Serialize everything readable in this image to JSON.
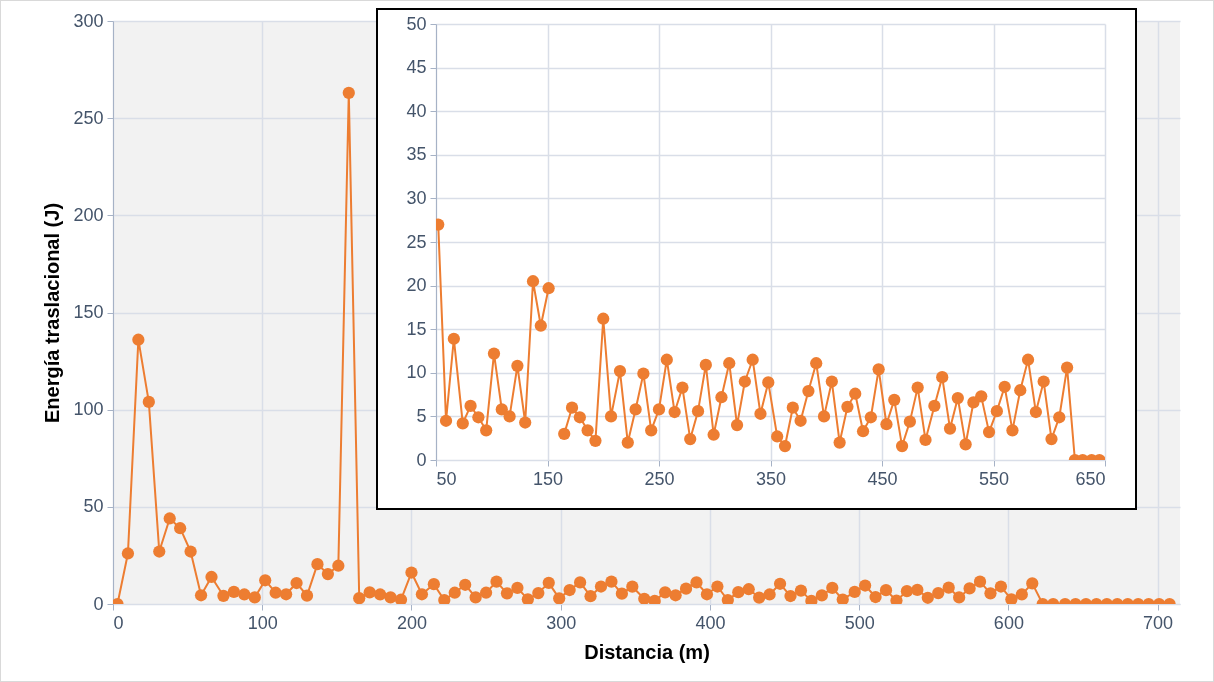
{
  "chart_data": [
    {
      "type": "line",
      "xlabel": "Distancia (m)",
      "ylabel": "Energía traslacional (J)",
      "marker": "circle",
      "grid": true,
      "xlim": [
        0,
        715
      ],
      "ylim": [
        0,
        300
      ],
      "xticks": [
        0,
        100,
        200,
        300,
        400,
        500,
        600,
        700
      ],
      "yticks": [
        0,
        50,
        100,
        150,
        200,
        250,
        300
      ],
      "x": [
        3,
        10,
        17,
        24,
        31,
        38,
        45,
        52,
        59,
        66,
        74,
        81,
        88,
        95,
        102,
        109,
        116,
        123,
        130,
        137,
        144,
        151,
        158,
        165,
        172,
        179,
        186,
        193,
        200,
        207,
        215,
        222,
        229,
        236,
        243,
        250,
        257,
        264,
        271,
        278,
        285,
        292,
        299,
        306,
        313,
        320,
        327,
        334,
        341,
        348,
        356,
        363,
        370,
        377,
        384,
        391,
        398,
        405,
        412,
        419,
        426,
        433,
        440,
        447,
        454,
        461,
        468,
        475,
        482,
        489,
        497,
        504,
        511,
        518,
        525,
        532,
        539,
        546,
        553,
        560,
        567,
        574,
        581,
        588,
        595,
        602,
        609,
        616,
        623,
        630,
        638,
        645,
        652,
        659,
        666,
        673,
        680,
        687,
        694,
        701,
        708
      ],
      "series": [
        {
          "color": "#ed7d31",
          "values": [
            0,
            26,
            136,
            104,
            27,
            44,
            39,
            27,
            4.5,
            13.9,
            4.2,
            6.2,
            4.9,
            3.4,
            12.2,
            5.8,
            5.0,
            10.8,
            4.3,
            20.5,
            15.4,
            19.7,
            263,
            3.0,
            6.0,
            4.9,
            3.4,
            2.2,
            16.2,
            5.0,
            10.2,
            2.0,
            5.8,
            9.9,
            3.4,
            5.8,
            11.5,
            5.5,
            8.3,
            2.4,
            5.6,
            10.9,
            2.9,
            7.2,
            11.1,
            4.0,
            9.0,
            11.5,
            5.3,
            8.9,
            2.7,
            1.6,
            6.0,
            4.5,
            7.9,
            11.1,
            5.0,
            9.0,
            2.0,
            6.1,
            7.6,
            3.3,
            4.9,
            10.4,
            4.1,
            6.9,
            1.6,
            4.4,
            8.3,
            2.3,
            6.2,
            9.5,
            3.6,
            7.1,
            1.8,
            6.6,
            7.3,
            3.2,
            5.6,
            8.4,
            3.4,
            8.0,
            11.5,
            5.5,
            9.0,
            2.4,
            4.9,
            10.6,
            0,
            0,
            0,
            0,
            0,
            0,
            0,
            0,
            0,
            0,
            0,
            0,
            0
          ]
        }
      ]
    },
    {
      "type": "line",
      "marker": "circle",
      "grid": true,
      "xlim": [
        50,
        650
      ],
      "ylim": [
        0,
        50
      ],
      "xticks": [
        50,
        150,
        250,
        350,
        450,
        550,
        650
      ],
      "yticks": [
        0,
        5,
        10,
        15,
        20,
        25,
        30,
        35,
        40,
        45,
        50
      ],
      "x": [
        52,
        59,
        66,
        74,
        81,
        88,
        95,
        102,
        109,
        116,
        123,
        130,
        137,
        144,
        151,
        158,
        165,
        172,
        179,
        186,
        193,
        200,
        207,
        215,
        222,
        229,
        236,
        243,
        250,
        257,
        264,
        271,
        278,
        285,
        292,
        299,
        306,
        313,
        320,
        327,
        334,
        341,
        348,
        356,
        363,
        370,
        377,
        384,
        391,
        398,
        405,
        412,
        419,
        426,
        433,
        440,
        447,
        454,
        461,
        468,
        475,
        482,
        489,
        497,
        504,
        511,
        518,
        525,
        532,
        539,
        546,
        553,
        560,
        567,
        574,
        581,
        588,
        595,
        602,
        609,
        616,
        623,
        630,
        638,
        645
      ],
      "series": [
        {
          "color": "#ed7d31",
          "values": [
            27,
            4.5,
            13.9,
            4.2,
            6.2,
            4.9,
            3.4,
            12.2,
            5.8,
            5.0,
            10.8,
            4.3,
            20.5,
            15.4,
            19.7,
            null,
            3.0,
            6.0,
            4.9,
            3.4,
            2.2,
            16.2,
            5.0,
            10.2,
            2.0,
            5.8,
            9.9,
            3.4,
            5.8,
            11.5,
            5.5,
            8.3,
            2.4,
            5.6,
            10.9,
            2.9,
            7.2,
            11.1,
            4.0,
            9.0,
            11.5,
            5.3,
            8.9,
            2.7,
            1.6,
            6.0,
            4.5,
            7.9,
            11.1,
            5.0,
            9.0,
            2.0,
            6.1,
            7.6,
            3.3,
            4.9,
            10.4,
            4.1,
            6.9,
            1.6,
            4.4,
            8.3,
            2.3,
            6.2,
            9.5,
            3.6,
            7.1,
            1.8,
            6.6,
            7.3,
            3.2,
            5.6,
            8.4,
            3.4,
            8.0,
            11.5,
            5.5,
            9.0,
            2.4,
            4.9,
            10.6,
            0,
            0,
            0,
            0
          ]
        }
      ]
    }
  ]
}
